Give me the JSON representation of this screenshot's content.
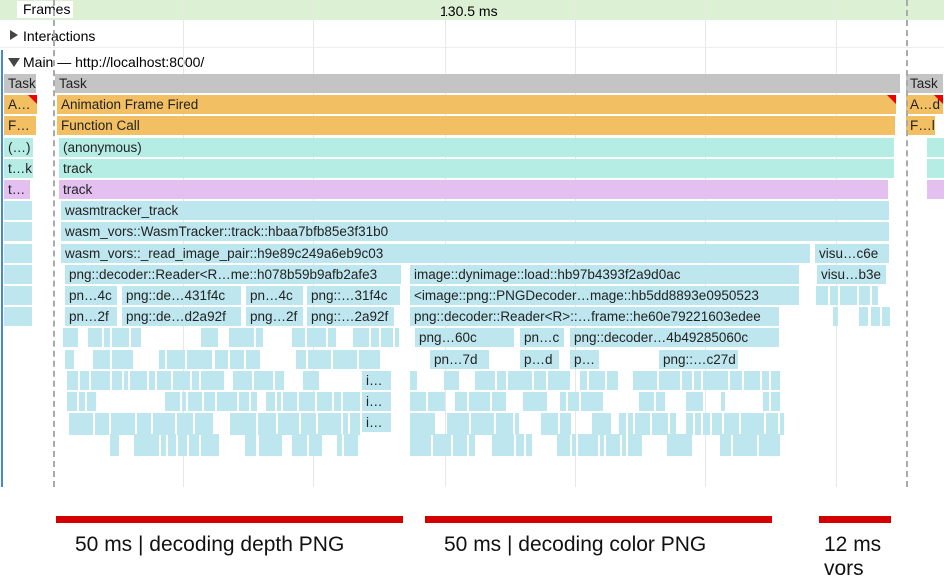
{
  "tracks": {
    "frames": {
      "label": "Frames",
      "duration": "130.5 ms"
    },
    "interactions": "Interactions",
    "main": "Main — http://localhost:8000/"
  },
  "flame": {
    "rows": [
      [
        "Task",
        "Task",
        "Task"
      ],
      [
        "A…",
        "Animation Frame Fired",
        "A…d"
      ],
      [
        "F…",
        "Function Call",
        "F…l"
      ],
      [
        "(…)",
        "(anonymous)"
      ],
      [
        "t…k",
        "track"
      ],
      [
        "t…",
        "track"
      ],
      [
        "wasmtracker_track"
      ],
      [
        "wasm_vors::WasmTracker::track::hbaa7bfb85e3f31b0"
      ],
      [
        "wasm_vors::_read_image_pair::h9e89c249a6eb9c03",
        "visu…c6e"
      ],
      [
        "png::decoder::Reader<R…me::h078b59b9afb2afe3",
        "image::dynimage::load::hb97b4393f2a9d0ac",
        "visu…b3e"
      ],
      [
        "pn…4c",
        "png::de…431f4c",
        "pn…4c",
        "png::…31f4c",
        "<image::png::PNGDecoder…mage::hb5dd8893e0950523"
      ],
      [
        "pn…2f",
        "png::de…d2a92f",
        "png…2f",
        "png::…2a92f",
        "png::decoder::Reader<R>::…frame::he60e79221603edee"
      ],
      [
        "png…60c",
        "pn…c",
        "png::decoder…4b49285060c"
      ],
      [
        "pn…7d",
        "p…d",
        "p…",
        "png::…c27d"
      ],
      [
        "i…"
      ],
      [
        "i…"
      ],
      [
        "i…"
      ]
    ]
  },
  "annotations": [
    "50 ms | decoding depth PNG",
    "50 ms | decoding color PNG",
    "12 ms vors"
  ]
}
